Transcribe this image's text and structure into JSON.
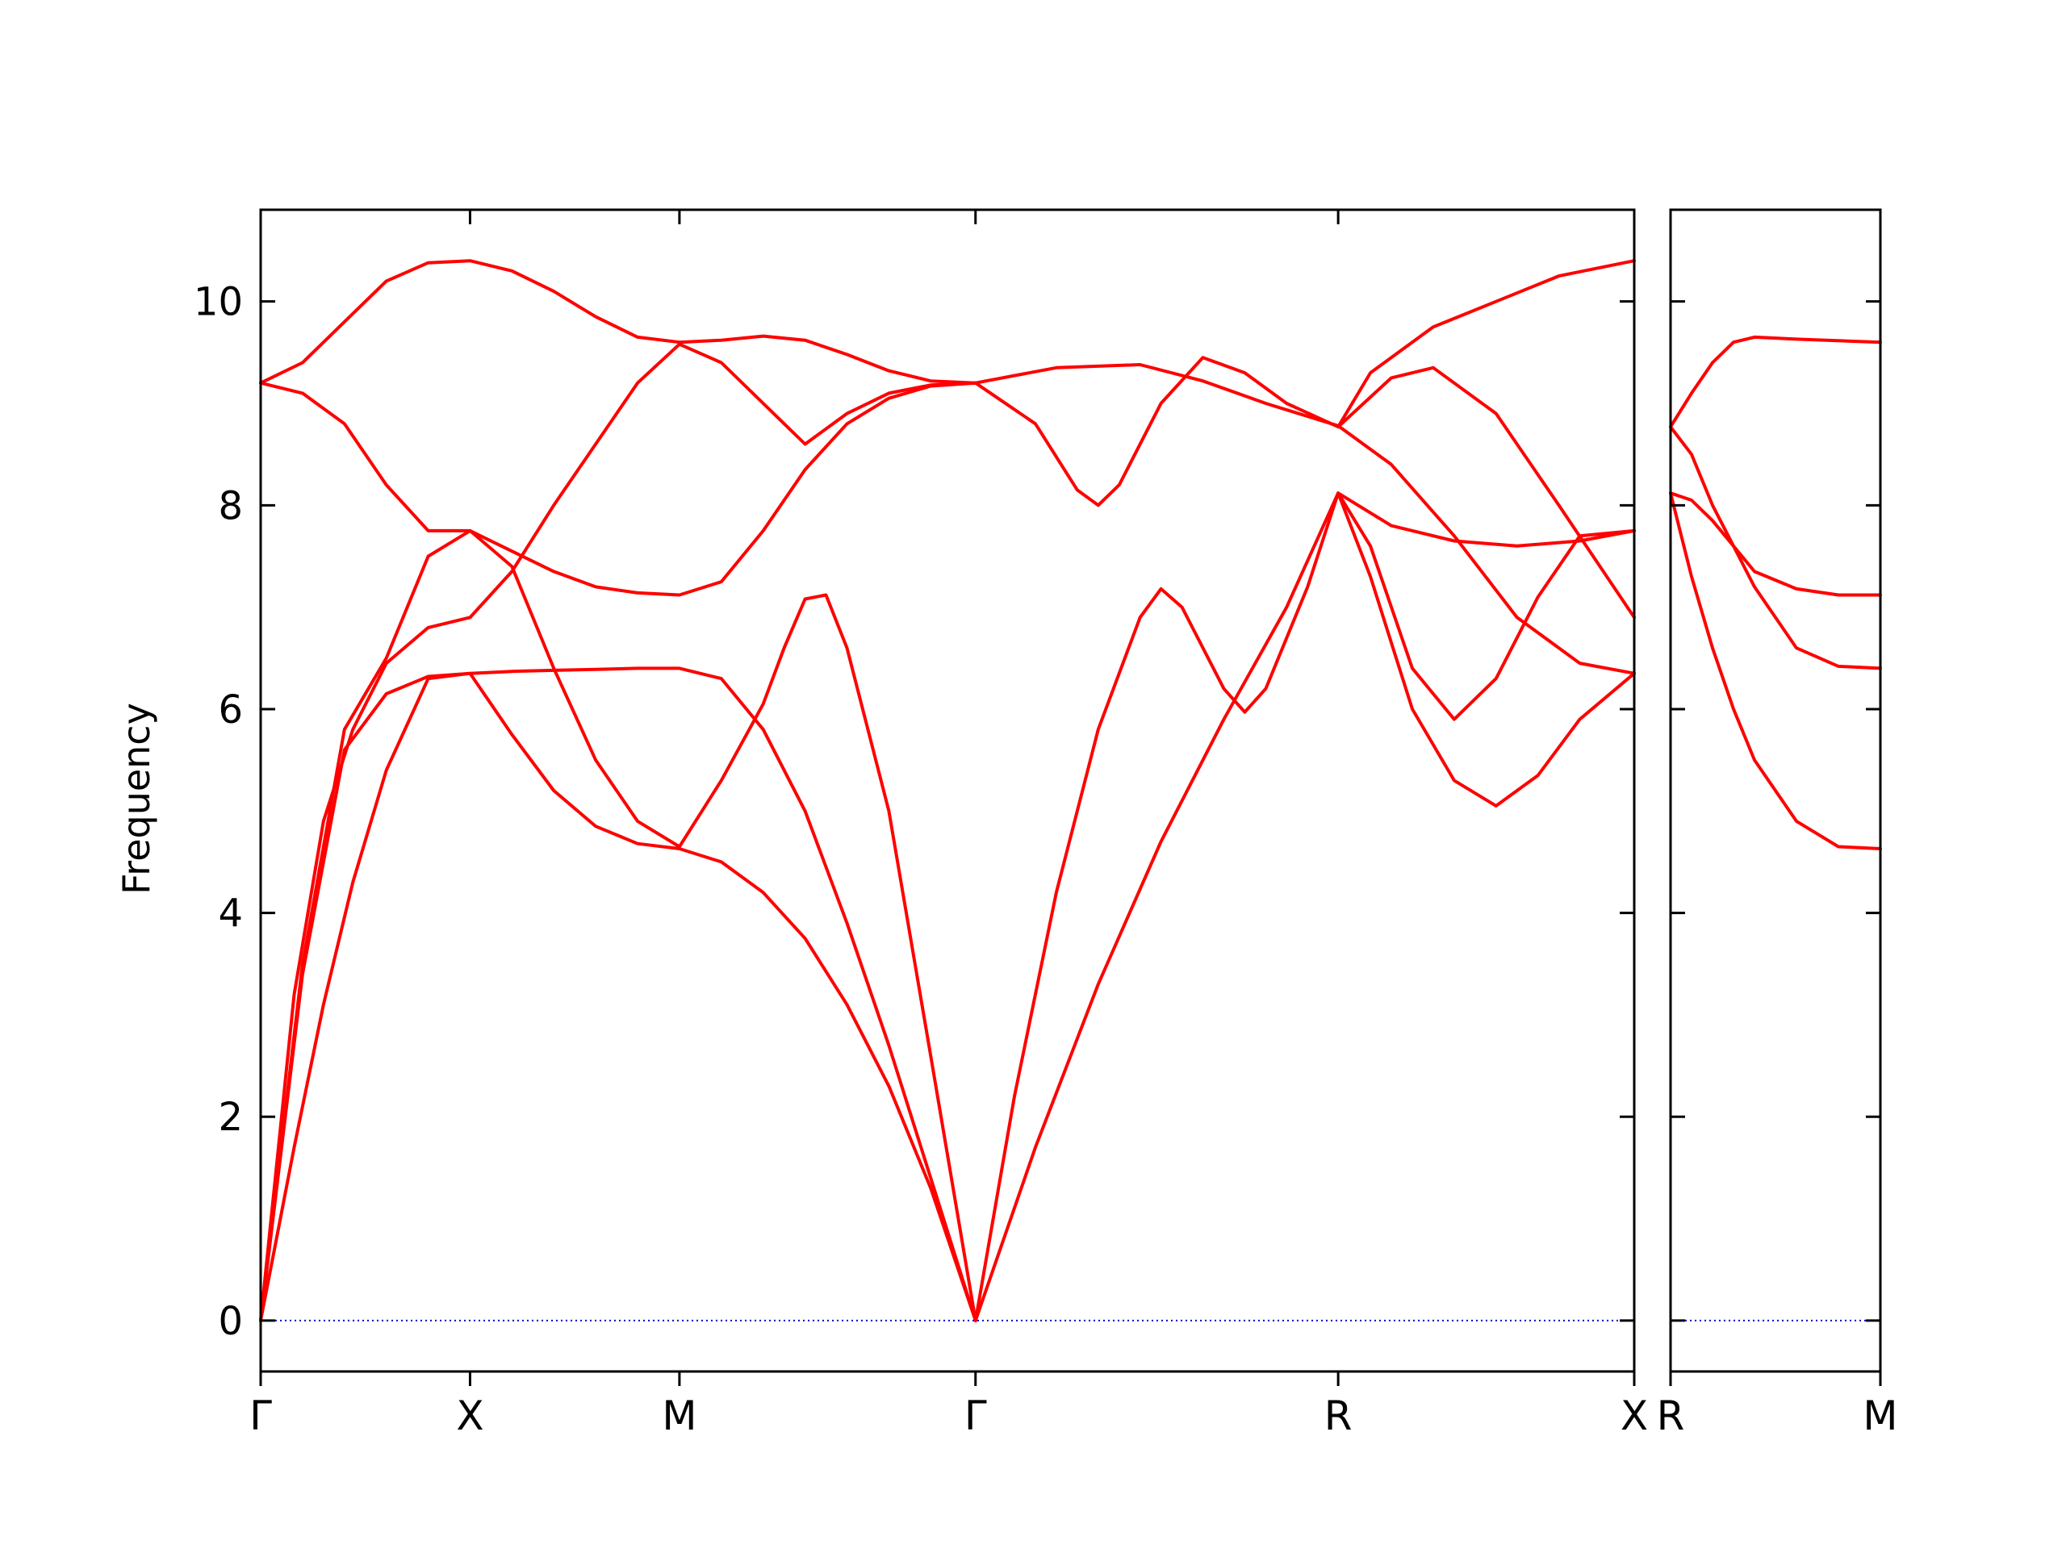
{
  "chart_data": {
    "type": "line",
    "title": "",
    "ylabel": "Frequency",
    "ylim": [
      -0.5,
      10.9
    ],
    "yticks": [
      0,
      2,
      4,
      6,
      8,
      10
    ],
    "yticklabels": [
      "0",
      "2",
      "4",
      "6",
      "8",
      "10"
    ],
    "series_color": "#ff0000",
    "zero_line_color": "#0000cc",
    "grid": false,
    "legend": "none",
    "panels": [
      {
        "id": "main",
        "path_labels": [
          "Γ",
          "X",
          "M",
          "Γ",
          "R",
          "X"
        ],
        "label_positions": [
          0,
          0.5,
          1.0,
          1.707,
          2.573,
          3.28
        ],
        "xlim": [
          0,
          3.28
        ],
        "bands": [
          {
            "points": [
              [
                0,
                0
              ],
              [
                0.08,
                1.7
              ],
              [
                0.15,
                3.1
              ],
              [
                0.22,
                4.3
              ],
              [
                0.3,
                5.4
              ],
              [
                0.4,
                6.3
              ],
              [
                0.5,
                6.35
              ],
              [
                0.6,
                5.75
              ],
              [
                0.7,
                5.2
              ],
              [
                0.8,
                4.85
              ],
              [
                0.9,
                4.68
              ],
              [
                1.0,
                4.63
              ],
              [
                1.1,
                4.5
              ],
              [
                1.2,
                4.2
              ],
              [
                1.3,
                3.75
              ],
              [
                1.4,
                3.1
              ],
              [
                1.5,
                2.3
              ],
              [
                1.6,
                1.3
              ],
              [
                1.707,
                0
              ]
            ]
          },
          {
            "points": [
              [
                0,
                0
              ],
              [
                0.08,
                3.2
              ],
              [
                0.15,
                4.9
              ],
              [
                0.22,
                5.8
              ],
              [
                0.3,
                6.45
              ],
              [
                0.4,
                6.8
              ],
              [
                0.5,
                6.9
              ],
              [
                0.6,
                7.35
              ],
              [
                0.7,
                8.0
              ],
              [
                0.8,
                8.6
              ],
              [
                0.9,
                9.2
              ],
              [
                1.0,
                9.58
              ],
              [
                1.1,
                9.4
              ],
              [
                1.2,
                9.0
              ],
              [
                1.3,
                8.6
              ],
              [
                1.4,
                8.9
              ],
              [
                1.5,
                9.1
              ],
              [
                1.6,
                9.18
              ],
              [
                1.707,
                9.2
              ]
            ]
          },
          {
            "points": [
              [
                0,
                9.2
              ],
              [
                0.1,
                9.4
              ],
              [
                0.2,
                9.8
              ],
              [
                0.3,
                10.2
              ],
              [
                0.4,
                10.38
              ],
              [
                0.5,
                10.4
              ],
              [
                0.6,
                10.3
              ],
              [
                0.7,
                10.1
              ],
              [
                0.8,
                9.85
              ],
              [
                0.9,
                9.65
              ],
              [
                1.0,
                9.6
              ],
              [
                1.1,
                9.62
              ],
              [
                1.2,
                9.66
              ],
              [
                1.3,
                9.62
              ],
              [
                1.4,
                9.48
              ],
              [
                1.5,
                9.32
              ],
              [
                1.6,
                9.22
              ],
              [
                1.707,
                9.2
              ]
            ]
          },
          {
            "points": [
              [
                0,
                9.2
              ],
              [
                0.1,
                9.1
              ],
              [
                0.2,
                8.8
              ],
              [
                0.3,
                8.2
              ],
              [
                0.4,
                7.75
              ],
              [
                0.5,
                7.75
              ],
              [
                0.6,
                7.55
              ],
              [
                0.7,
                7.35
              ],
              [
                0.8,
                7.2
              ],
              [
                0.9,
                7.14
              ],
              [
                1.0,
                7.12
              ],
              [
                1.1,
                7.25
              ],
              [
                1.2,
                7.75
              ],
              [
                1.3,
                8.35
              ],
              [
                1.4,
                8.8
              ],
              [
                1.5,
                9.05
              ],
              [
                1.6,
                9.17
              ],
              [
                1.707,
                9.2
              ]
            ]
          },
          {
            "points": [
              [
                0,
                0
              ],
              [
                0.1,
                3.4
              ],
              [
                0.2,
                5.6
              ],
              [
                0.3,
                6.15
              ],
              [
                0.4,
                6.32
              ],
              [
                0.5,
                6.35
              ],
              [
                0.6,
                6.37
              ],
              [
                0.7,
                6.38
              ],
              [
                0.8,
                6.39
              ],
              [
                0.9,
                6.4
              ],
              [
                1.0,
                6.4
              ],
              [
                1.1,
                6.3
              ],
              [
                1.2,
                5.8
              ],
              [
                1.3,
                5.0
              ],
              [
                1.4,
                3.9
              ],
              [
                1.5,
                2.7
              ],
              [
                1.6,
                1.4
              ],
              [
                1.707,
                0
              ]
            ]
          },
          {
            "points": [
              [
                0,
                0
              ],
              [
                0.1,
                3.5
              ],
              [
                0.2,
                5.8
              ],
              [
                0.3,
                6.5
              ],
              [
                0.4,
                7.5
              ],
              [
                0.5,
                7.75
              ],
              [
                0.6,
                7.4
              ],
              [
                0.7,
                6.4
              ],
              [
                0.8,
                5.5
              ],
              [
                0.9,
                4.9
              ],
              [
                1.0,
                4.65
              ],
              [
                1.1,
                5.3
              ],
              [
                1.2,
                6.05
              ],
              [
                1.25,
                6.6
              ],
              [
                1.3,
                7.08
              ],
              [
                1.35,
                7.12
              ],
              [
                1.4,
                6.6
              ],
              [
                1.5,
                5.0
              ],
              [
                1.6,
                2.6
              ],
              [
                1.707,
                0
              ]
            ]
          },
          {
            "points": [
              [
                1.707,
                0
              ],
              [
                1.8,
                2.2
              ],
              [
                1.9,
                4.2
              ],
              [
                2.0,
                5.8
              ],
              [
                2.1,
                6.9
              ],
              [
                2.15,
                7.18
              ],
              [
                2.2,
                7.0
              ],
              [
                2.3,
                6.2
              ],
              [
                2.35,
                5.97
              ],
              [
                2.4,
                6.2
              ],
              [
                2.5,
                7.2
              ],
              [
                2.573,
                8.12
              ],
              [
                2.65,
                7.6
              ],
              [
                2.75,
                6.4
              ],
              [
                2.85,
                5.9
              ],
              [
                2.95,
                6.3
              ],
              [
                3.05,
                7.1
              ],
              [
                3.15,
                7.7
              ],
              [
                3.28,
                7.75
              ]
            ]
          },
          {
            "points": [
              [
                1.707,
                0
              ],
              [
                1.85,
                1.7
              ],
              [
                2.0,
                3.3
              ],
              [
                2.15,
                4.7
              ],
              [
                2.3,
                5.9
              ],
              [
                2.45,
                7.0
              ],
              [
                2.573,
                8.12
              ],
              [
                2.7,
                7.8
              ],
              [
                2.85,
                7.65
              ],
              [
                3.0,
                7.6
              ],
              [
                3.15,
                7.65
              ],
              [
                3.28,
                7.75
              ]
            ]
          },
          {
            "points": [
              [
                1.707,
                9.2
              ],
              [
                1.9,
                9.35
              ],
              [
                2.1,
                9.38
              ],
              [
                2.25,
                9.22
              ],
              [
                2.4,
                9.0
              ],
              [
                2.573,
                8.78
              ],
              [
                2.7,
                8.4
              ],
              [
                2.85,
                7.7
              ],
              [
                3.0,
                6.9
              ],
              [
                3.15,
                6.45
              ],
              [
                3.28,
                6.35
              ]
            ]
          },
          {
            "points": [
              [
                1.707,
                9.2
              ],
              [
                1.85,
                8.8
              ],
              [
                1.95,
                8.15
              ],
              [
                2.0,
                8.0
              ],
              [
                2.05,
                8.2
              ],
              [
                2.15,
                9.0
              ],
              [
                2.25,
                9.45
              ],
              [
                2.35,
                9.3
              ],
              [
                2.45,
                9.0
              ],
              [
                2.573,
                8.77
              ],
              [
                2.7,
                9.25
              ],
              [
                2.8,
                9.35
              ],
              [
                2.95,
                8.9
              ],
              [
                3.1,
                8.0
              ],
              [
                3.28,
                6.9
              ]
            ]
          },
          {
            "points": [
              [
                2.573,
                8.77
              ],
              [
                2.65,
                9.3
              ],
              [
                2.8,
                9.75
              ],
              [
                2.95,
                10.0
              ],
              [
                3.1,
                10.25
              ],
              [
                3.28,
                10.4
              ]
            ]
          },
          {
            "points": [
              [
                2.573,
                8.12
              ],
              [
                2.65,
                7.3
              ],
              [
                2.75,
                6.0
              ],
              [
                2.85,
                5.3
              ],
              [
                2.95,
                5.05
              ],
              [
                3.05,
                5.35
              ],
              [
                3.15,
                5.9
              ],
              [
                3.28,
                6.35
              ]
            ]
          }
        ]
      },
      {
        "id": "side",
        "path_labels": [
          "R",
          "M"
        ],
        "label_positions": [
          0,
          0.5
        ],
        "xlim": [
          0,
          0.5
        ],
        "bands": [
          {
            "points": [
              [
                0,
                8.77
              ],
              [
                0.05,
                9.1
              ],
              [
                0.1,
                9.4
              ],
              [
                0.15,
                9.6
              ],
              [
                0.2,
                9.65
              ],
              [
                0.3,
                9.63
              ],
              [
                0.5,
                9.6
              ]
            ]
          },
          {
            "points": [
              [
                0,
                8.77
              ],
              [
                0.05,
                8.5
              ],
              [
                0.1,
                8.0
              ],
              [
                0.15,
                7.6
              ],
              [
                0.2,
                7.2
              ],
              [
                0.3,
                6.6
              ],
              [
                0.4,
                6.42
              ],
              [
                0.5,
                6.4
              ]
            ]
          },
          {
            "points": [
              [
                0,
                8.12
              ],
              [
                0.05,
                8.05
              ],
              [
                0.1,
                7.85
              ],
              [
                0.15,
                7.6
              ],
              [
                0.2,
                7.35
              ],
              [
                0.3,
                7.18
              ],
              [
                0.4,
                7.12
              ],
              [
                0.5,
                7.12
              ]
            ]
          },
          {
            "points": [
              [
                0,
                8.12
              ],
              [
                0.05,
                7.3
              ],
              [
                0.1,
                6.6
              ],
              [
                0.15,
                6.0
              ],
              [
                0.2,
                5.5
              ],
              [
                0.3,
                4.9
              ],
              [
                0.4,
                4.65
              ],
              [
                0.5,
                4.63
              ]
            ]
          }
        ]
      }
    ]
  }
}
